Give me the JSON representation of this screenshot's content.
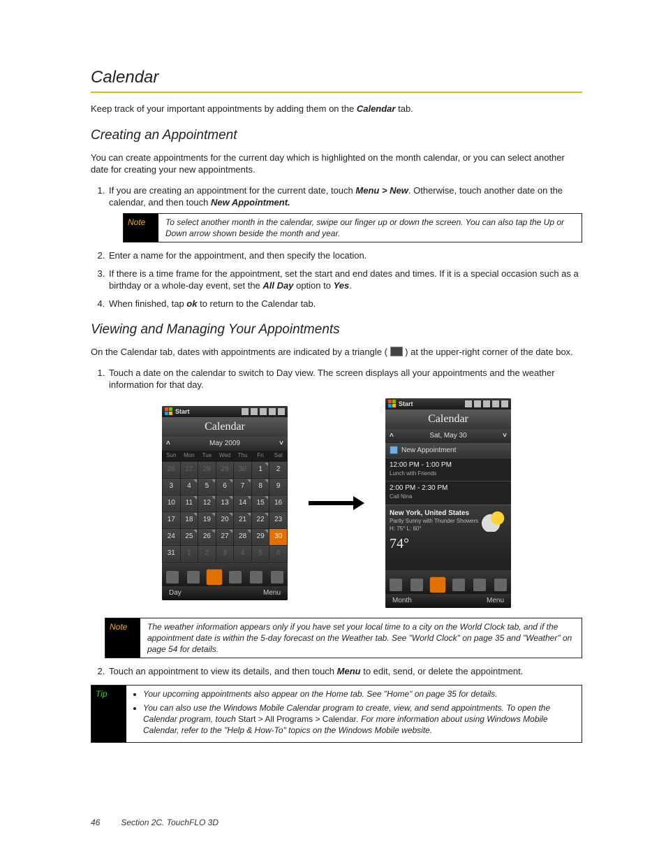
{
  "title": "Calendar",
  "intro": "Keep track of your important appointments by adding them on the ",
  "intro_bold": "Calendar",
  "intro_tail": " tab.",
  "sub_create": "Creating an Appointment",
  "create_intro": "You can create  appointments for the current day which is highlighted on the month calendar, or you can select another date for creating your new appointments.",
  "step1a": "If you are creating an appointment for the current date, touch ",
  "step1_menu": "Menu > New",
  "step1b": ". Otherwise, touch another date on the calendar, and then touch ",
  "step1_newappt": "New Appointment.",
  "note1_label": "Note",
  "note1_text": "To select another month in the calendar, swipe our finger up or down the screen. You can also tap the Up or Down arrow shown beside the month and year.",
  "step2": "Enter a name for the appointment, and then specify the location.",
  "step3a": "If there is a time frame for the appointment, set the start and end dates and times. If it is a special occasion such as a birthday or a whole-day event, set the ",
  "step3_allday": "All Day",
  "step3b": " option to ",
  "step3_yes": "Yes",
  "step3c": ".",
  "step4a": "When finished, tap ",
  "step4_ok": "ok",
  "step4b": " to return to the Calendar tab.",
  "sub_view": "Viewing and Managing Your Appointments",
  "view_intro_a": "On the Calendar tab, dates with appointments are indicated by a triangle (  ",
  "view_intro_b": "  ) at the upper-right corner of the date box.",
  "vstep1": "Touch a date on the calendar to switch to Day view. The screen displays all your appointments and the weather information for that day.",
  "note2_label": "Note",
  "note2_text": "The weather information appears only if you have set your local time to a city on the World Clock tab, and if the appointment date is within the 5-day forecast on the Weather tab. See \"World Clock\" on page 35 and \"Weather\" on page 54 for details.",
  "vstep2a": "Touch an appointment to view its details, and then touch ",
  "vstep2_menu": "Menu",
  "vstep2b": " to edit, send, or delete the appointment.",
  "tip_label": "Tip",
  "tip1": "Your upcoming appointments also appear on the Home tab. See \"Home\" on page 35 for details.",
  "tip2a": "You can also use the Windows Mobile Calendar program to create, view, and send appointments. To open the Calendar program, touch ",
  "tip2_path": "Start > All Programs > Calendar",
  "tip2b": ". For more information about using Windows Mobile Calendar, refer to the \"Help & How-To\" topics on the Windows Mobile website.",
  "footer_page": "46",
  "footer_section": "Section 2C. TouchFLO 3D",
  "phone_left": {
    "start": "Start",
    "header": "Calendar",
    "monthyear": "May 2009",
    "dow": [
      "Sun",
      "Mon",
      "Tue",
      "Wed",
      "Thu",
      "Fri",
      "Sat"
    ],
    "weeks": [
      [
        {
          "d": "26",
          "dim": true
        },
        {
          "d": "27",
          "dim": true
        },
        {
          "d": "28",
          "dim": true
        },
        {
          "d": "29",
          "dim": true
        },
        {
          "d": "30",
          "dim": true
        },
        {
          "d": "1",
          "tri": true
        },
        {
          "d": "2"
        }
      ],
      [
        {
          "d": "3"
        },
        {
          "d": "4",
          "tri": true
        },
        {
          "d": "5",
          "tri": true
        },
        {
          "d": "6",
          "tri": true
        },
        {
          "d": "7",
          "tri": true
        },
        {
          "d": "8",
          "tri": true
        },
        {
          "d": "9"
        }
      ],
      [
        {
          "d": "10"
        },
        {
          "d": "11",
          "tri": true
        },
        {
          "d": "12",
          "tri": true
        },
        {
          "d": "13",
          "tri": true
        },
        {
          "d": "14",
          "tri": true
        },
        {
          "d": "15",
          "tri": true
        },
        {
          "d": "16"
        }
      ],
      [
        {
          "d": "17"
        },
        {
          "d": "18",
          "tri": true
        },
        {
          "d": "19",
          "tri": true
        },
        {
          "d": "20",
          "tri": true
        },
        {
          "d": "21",
          "tri": true
        },
        {
          "d": "22",
          "tri": true
        },
        {
          "d": "23"
        }
      ],
      [
        {
          "d": "24"
        },
        {
          "d": "25",
          "tri": true
        },
        {
          "d": "26",
          "tri": true
        },
        {
          "d": "27",
          "tri": true
        },
        {
          "d": "28",
          "tri": true
        },
        {
          "d": "29",
          "tri": true
        },
        {
          "d": "30",
          "sel": true
        }
      ],
      [
        {
          "d": "31"
        },
        {
          "d": "1",
          "dim": true
        },
        {
          "d": "2",
          "dim": true
        },
        {
          "d": "3",
          "dim": true
        },
        {
          "d": "4",
          "dim": true
        },
        {
          "d": "5",
          "dim": true
        },
        {
          "d": "6",
          "dim": true
        }
      ]
    ],
    "bottom_left": "Day",
    "bottom_right": "Menu"
  },
  "phone_right": {
    "start": "Start",
    "header": "Calendar",
    "date": "Sat, May 30",
    "new_appt": "New Appointment",
    "appt1_time": "12:00 PM - 1:00 PM",
    "appt1_desc": "Lunch with Friends",
    "appt2_time": "2:00 PM - 2:30 PM",
    "appt2_desc": "Call Nina",
    "w_loc": "New York, United States",
    "w_cond": "Partly Sunny with Thunder Showers",
    "w_hl": "H: 75° L: 60°",
    "w_temp": "74°",
    "bottom_left": "Month",
    "bottom_right": "Menu"
  }
}
